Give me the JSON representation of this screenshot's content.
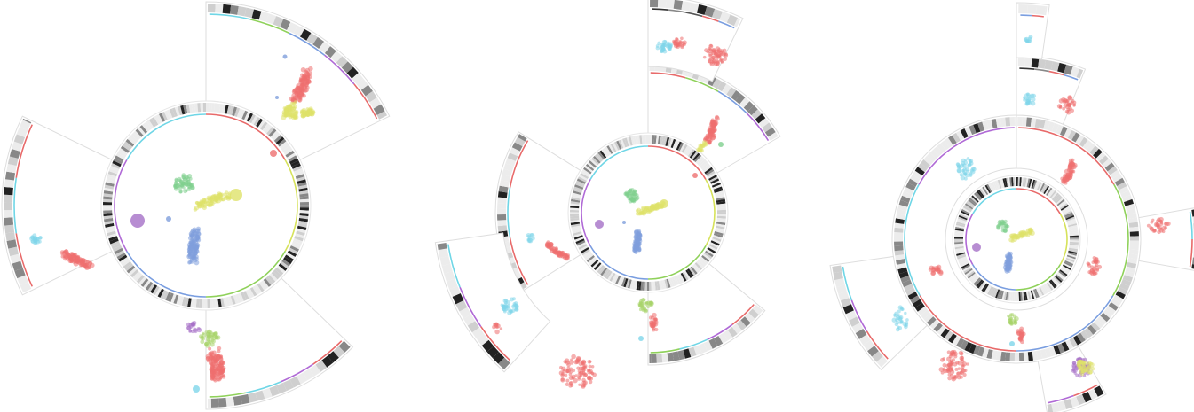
{
  "figure": {
    "panels": [
      {
        "id": "panel-1",
        "inner_ring": {
          "arc_colors": [
            "#e86a6a",
            "#d6e25a",
            "#8fd15a",
            "#7a9ee0",
            "#b06ad6",
            "#6fd6e6"
          ],
          "clusters": [
            {
              "color": "#7ccf8a",
              "shape": "blob"
            },
            {
              "color": "#d9e05a",
              "shape": "elongated"
            },
            {
              "color": "#7f9fdc",
              "shape": "vertical"
            },
            {
              "color": "#a570c7",
              "shape": "dot"
            }
          ]
        },
        "wedges": [
          {
            "label_visible": false,
            "arc_colors": [
              "#6fd6e6",
              "#8fd15a",
              "#7a9ee0",
              "#b06ad6",
              "#e86a6a"
            ]
          },
          {
            "label_visible": false,
            "arc_colors": [
              "#e86a6a",
              "#6fd6e6",
              "#e86a6a"
            ]
          },
          {
            "label_visible": false,
            "arc_colors": [
              "#e86a6a",
              "#b06ad6",
              "#6fd6e6",
              "#8fd15a"
            ]
          }
        ]
      },
      {
        "id": "panel-2",
        "wedge_count": 5
      },
      {
        "id": "panel-3",
        "wedge_count": 7
      }
    ],
    "palette": {
      "red": "#ee7070",
      "yellow": "#dfe26a",
      "green": "#80cf8e",
      "blue": "#7f9fdc",
      "purple": "#a570c7",
      "cyan": "#7fd6ea",
      "lime": "#a8d46a",
      "ring_dark": "#333333",
      "ring_light": "#dddddd"
    }
  }
}
